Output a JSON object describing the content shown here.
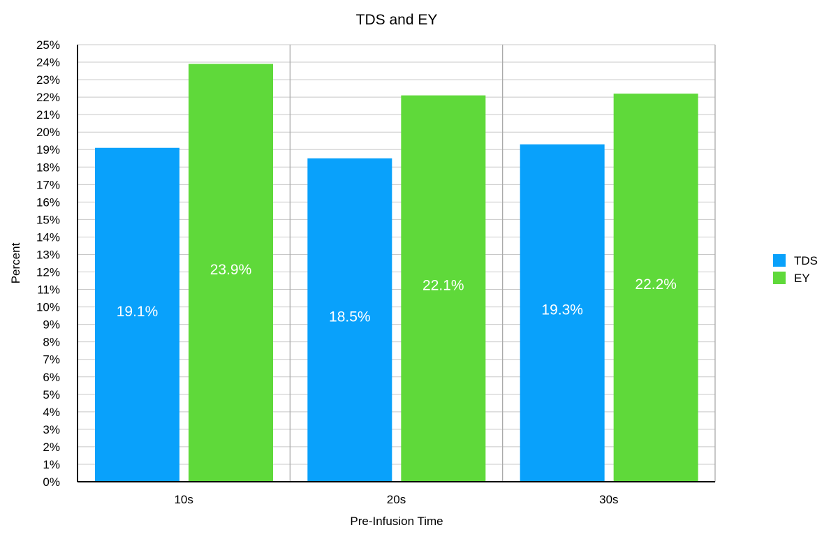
{
  "chart_data": {
    "type": "bar",
    "title": "TDS and EY",
    "xlabel": "Pre-Infusion Time",
    "ylabel": "Percent",
    "categories": [
      "10s",
      "20s",
      "30s"
    ],
    "series": [
      {
        "name": "TDS",
        "values": [
          19.1,
          18.5,
          19.3
        ],
        "labels": [
          "19.1%",
          "18.5%",
          "19.3%"
        ],
        "color": "#09a1fb"
      },
      {
        "name": "EY",
        "values": [
          23.9,
          22.1,
          22.2
        ],
        "labels": [
          "23.9%",
          "22.1%",
          "22.2%"
        ],
        "color": "#5fd93a"
      }
    ],
    "ylim": [
      0,
      25
    ],
    "ytick_step": 1,
    "ytick_suffix": "%",
    "grid": true,
    "legend_position": "right"
  }
}
